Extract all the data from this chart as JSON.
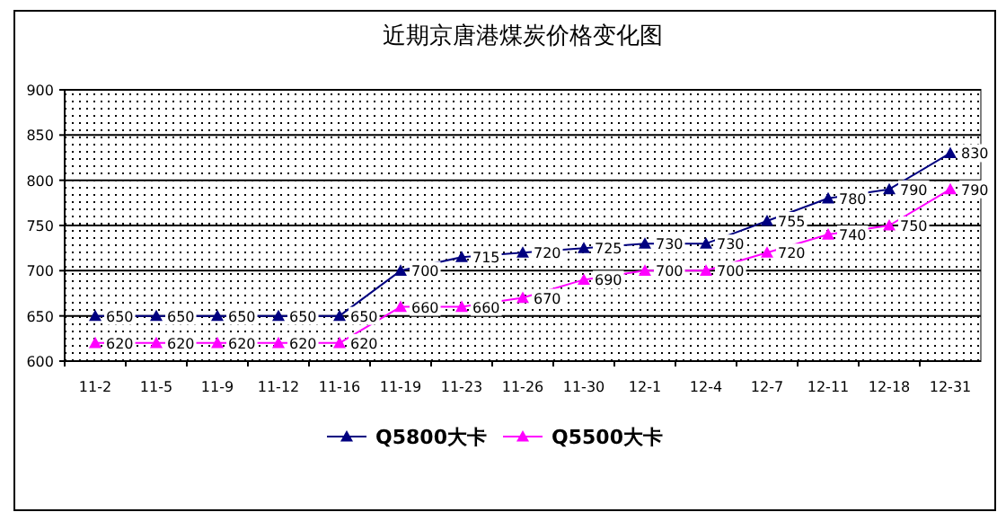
{
  "chart_data": {
    "type": "line",
    "title": "近期京唐港煤炭价格变化图",
    "categories": [
      "11-2",
      "11-5",
      "11-9",
      "11-12",
      "11-16",
      "11-19",
      "11-23",
      "11-26",
      "11-30",
      "12-1",
      "12-4",
      "12-7",
      "12-11",
      "12-18",
      "12-31"
    ],
    "series": [
      {
        "name": "Q5800大卡",
        "color": "#000080",
        "values": [
          650,
          650,
          650,
          650,
          650,
          700,
          715,
          720,
          725,
          730,
          730,
          755,
          780,
          790,
          830
        ]
      },
      {
        "name": "Q5500大卡",
        "color": "#ff00ff",
        "values": [
          620,
          620,
          620,
          620,
          620,
          660,
          660,
          670,
          690,
          700,
          700,
          720,
          740,
          750,
          790
        ]
      }
    ],
    "ylim": [
      600,
      900
    ],
    "yticks": [
      600,
      650,
      700,
      750,
      800,
      850,
      900
    ],
    "grid": "y",
    "legend": "bottom",
    "marker": "triangle",
    "data_labels": true
  }
}
